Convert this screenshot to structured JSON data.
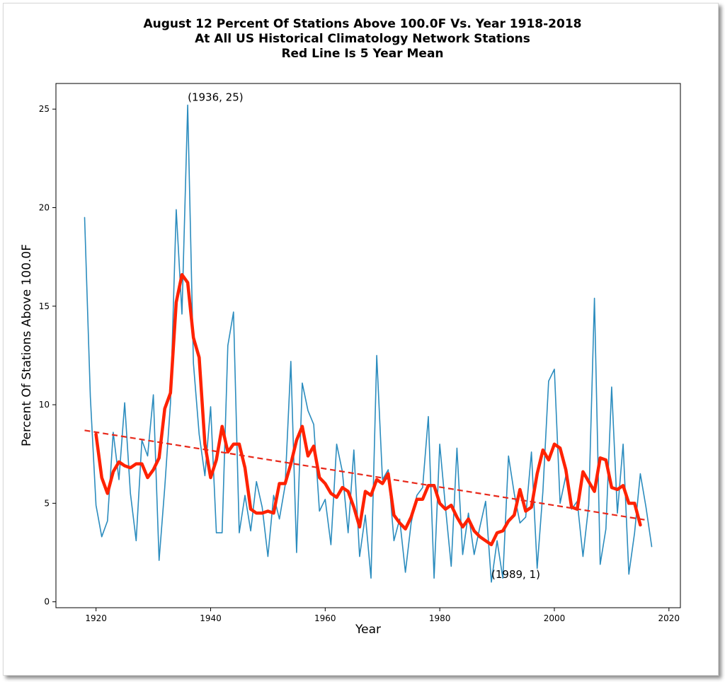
{
  "chart_data": {
    "type": "line",
    "title_lines": [
      "August 12 Percent Of Stations Above 100.0F Vs. Year 1918-2018",
      "At All US Historical Climatology Network Stations",
      "Red Line Is 5 Year Mean"
    ],
    "xlabel": "Year",
    "ylabel": "Percent Of Stations Above 100.0F",
    "xlim": [
      1913,
      2022
    ],
    "ylim": [
      -0.3,
      26.3
    ],
    "xticks": [
      1920,
      1940,
      1960,
      1980,
      2000,
      2020
    ],
    "yticks": [
      0,
      5,
      10,
      15,
      20,
      25
    ],
    "grid": false,
    "colors": {
      "raw": "#2b8cbe",
      "mean": "#ff2200",
      "trend": "#e8281a"
    },
    "series": [
      {
        "style": "thin-blue",
        "x": [
          1918,
          1919,
          1920,
          1921,
          1922,
          1923,
          1924,
          1925,
          1926,
          1927,
          1928,
          1929,
          1930,
          1931,
          1932,
          1933,
          1934,
          1935,
          1936,
          1937,
          1938,
          1939,
          1940,
          1941,
          1942,
          1943,
          1944,
          1945,
          1946,
          1947,
          1948,
          1949,
          1950,
          1951,
          1952,
          1953,
          1954,
          1955,
          1956,
          1957,
          1958,
          1959,
          1960,
          1961,
          1962,
          1963,
          1964,
          1965,
          1966,
          1967,
          1968,
          1969,
          1970,
          1971,
          1972,
          1973,
          1974,
          1975,
          1976,
          1977,
          1978,
          1979,
          1980,
          1981,
          1982,
          1983,
          1984,
          1985,
          1986,
          1987,
          1988,
          1989,
          1990,
          1991,
          1992,
          1993,
          1994,
          1995,
          1996,
          1997,
          1998,
          1999,
          2000,
          2001,
          2002,
          2003,
          2004,
          2005,
          2006,
          2007,
          2008,
          2009,
          2010,
          2011,
          2012,
          2013,
          2014,
          2015,
          2016,
          2017
        ],
        "values": [
          19.5,
          10.4,
          4.9,
          3.3,
          4.1,
          8.6,
          6.2,
          10.1,
          5.5,
          3.1,
          8.2,
          7.4,
          10.5,
          2.1,
          5.8,
          10.1,
          19.9,
          14.6,
          25.2,
          12.1,
          8.5,
          6.4,
          9.9,
          3.5,
          3.5,
          13.0,
          14.7,
          3.5,
          5.4,
          3.6,
          6.1,
          4.8,
          2.3,
          5.4,
          4.2,
          5.9,
          12.2,
          2.5,
          11.1,
          9.7,
          9.0,
          4.6,
          5.2,
          2.9,
          8.0,
          6.6,
          3.5,
          7.7,
          2.3,
          4.4,
          1.2,
          12.5,
          6.2,
          6.7,
          3.1,
          4.2,
          1.5,
          4.0,
          5.4,
          5.8,
          9.4,
          1.2,
          8.0,
          4.8,
          1.8,
          7.8,
          2.4,
          4.5,
          2.4,
          3.8,
          5.1,
          1.0,
          3.1,
          1.2,
          7.4,
          5.5,
          4.0,
          4.3,
          7.6,
          1.7,
          5.6,
          11.2,
          11.8,
          5.0,
          6.4,
          4.7,
          5.1,
          2.3,
          4.9,
          15.4,
          1.9,
          3.7,
          10.9,
          4.5,
          8.0,
          1.4,
          3.5,
          6.5,
          4.8,
          2.8
        ]
      },
      {
        "style": "thick-red",
        "x": [
          1920,
          1921,
          1922,
          1923,
          1924,
          1925,
          1926,
          1927,
          1928,
          1929,
          1930,
          1931,
          1932,
          1933,
          1934,
          1935,
          1936,
          1937,
          1938,
          1939,
          1940,
          1941,
          1942,
          1943,
          1944,
          1945,
          1946,
          1947,
          1948,
          1949,
          1950,
          1951,
          1952,
          1953,
          1954,
          1955,
          1956,
          1957,
          1958,
          1959,
          1960,
          1961,
          1962,
          1963,
          1964,
          1965,
          1966,
          1967,
          1968,
          1969,
          1970,
          1971,
          1972,
          1973,
          1974,
          1975,
          1976,
          1977,
          1978,
          1979,
          1980,
          1981,
          1982,
          1983,
          1984,
          1985,
          1986,
          1987,
          1988,
          1989,
          1990,
          1991,
          1992,
          1993,
          1994,
          1995,
          1996,
          1997,
          1998,
          1999,
          2000,
          2001,
          2002,
          2003,
          2004,
          2005,
          2006,
          2007,
          2008,
          2009,
          2010,
          2011,
          2012,
          2013,
          2014,
          2015
        ],
        "values": [
          8.5,
          6.3,
          5.5,
          6.6,
          7.1,
          6.9,
          6.8,
          7.0,
          7.0,
          6.3,
          6.7,
          7.3,
          9.8,
          10.6,
          15.2,
          16.6,
          16.2,
          13.4,
          12.4,
          8.0,
          6.3,
          7.2,
          8.9,
          7.6,
          8.0,
          8.0,
          6.8,
          4.7,
          4.5,
          4.5,
          4.6,
          4.5,
          6.0,
          6.0,
          7.0,
          8.2,
          8.9,
          7.4,
          7.9,
          6.3,
          6.0,
          5.5,
          5.3,
          5.8,
          5.6,
          4.8,
          3.8,
          5.6,
          5.4,
          6.2,
          6.0,
          6.5,
          4.4,
          4.0,
          3.7,
          4.3,
          5.2,
          5.2,
          5.9,
          5.9,
          5.0,
          4.7,
          4.9,
          4.3,
          3.8,
          4.2,
          3.6,
          3.3,
          3.1,
          2.9,
          3.5,
          3.6,
          4.1,
          4.4,
          5.7,
          4.6,
          4.8,
          6.5,
          7.7,
          7.2,
          8.0,
          7.8,
          6.7,
          4.8,
          4.7,
          6.6,
          6.1,
          5.6,
          7.3,
          7.2,
          5.8,
          5.7,
          5.9,
          5.0,
          5.0,
          3.9
        ]
      },
      {
        "style": "dashed-trend",
        "x": [
          1918,
          2016
        ],
        "values": [
          8.7,
          4.15
        ]
      }
    ],
    "annotations": [
      {
        "text": "(1936, 25)",
        "x": 1936,
        "y": 25.2
      },
      {
        "text": "(1989, 1)",
        "x": 1989,
        "y": 1.0
      }
    ]
  }
}
